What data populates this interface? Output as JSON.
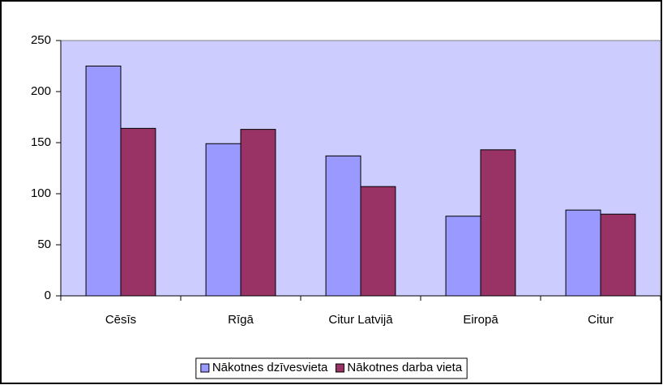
{
  "chart_data": {
    "type": "bar",
    "categories": [
      "Cēsīs",
      "Rīgā",
      "Citur Latvijā",
      "Eiropā",
      "Citur"
    ],
    "series": [
      {
        "name": "Nākotnes dzīvesvieta",
        "color": "#9999ff",
        "values": [
          225,
          149,
          137,
          78,
          84
        ]
      },
      {
        "name": "Nākotnes darba vieta",
        "color": "#993366",
        "values": [
          164,
          163,
          107,
          143,
          80
        ]
      }
    ],
    "ylim": [
      0,
      250
    ],
    "yticks": [
      0,
      50,
      100,
      150,
      200,
      250
    ],
    "legend": "bottom",
    "plot_background": "#ccccff"
  }
}
